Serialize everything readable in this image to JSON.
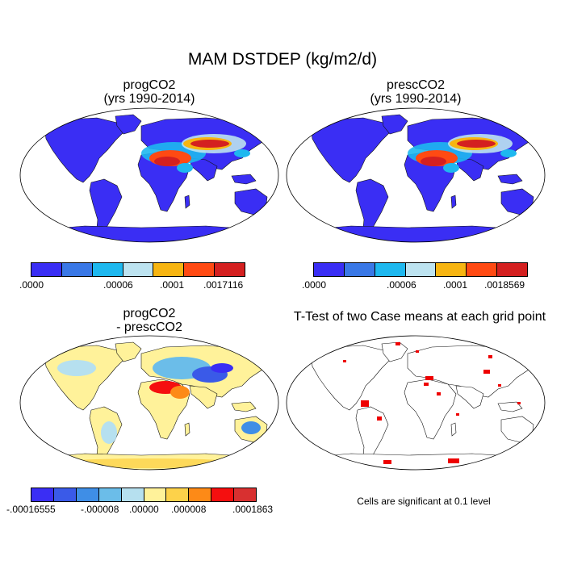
{
  "figure": {
    "title": "MAM DSTDEP (kg/m2/d)"
  },
  "panels": [
    {
      "id": "progCO2",
      "title_line1": "progCO2",
      "title_line2": "(yrs 1990-2014)",
      "colorbar": {
        "colors": [
          "#3a2ef4",
          "#3a78e6",
          "#1eb8ef",
          "#bde3f0",
          "#f7b512",
          "#ff4a13",
          "#d42020"
        ],
        "labels": [
          ".0000",
          ".00006",
          ".0001",
          ".0017116"
        ]
      }
    },
    {
      "id": "prescCO2",
      "title_line1": "prescCO2",
      "title_line2": "(yrs 1990-2014)",
      "colorbar": {
        "colors": [
          "#3a2ef4",
          "#3a78e6",
          "#1eb8ef",
          "#bde3f0",
          "#f7b512",
          "#ff4a13",
          "#d42020"
        ],
        "labels": [
          ".0000",
          ".00006",
          ".0001",
          ".0018569"
        ]
      }
    },
    {
      "id": "difference",
      "title_line1": "progCO2",
      "title_line2": "- prescCO2",
      "colorbar": {
        "colors": [
          "#3a2ef4",
          "#3a5ae8",
          "#3f8ee6",
          "#6bbde9",
          "#b6e0ef",
          "#fff29a",
          "#fdd24a",
          "#fd8a17",
          "#f50f0f",
          "#d83030"
        ],
        "labels": [
          "-.00016555",
          "-.000008",
          ".00000",
          ".000008",
          ".0001863"
        ]
      }
    },
    {
      "id": "ttest",
      "title_line1": "T-Test of two Case means at each grid point",
      "note": "Cells are significant at 0.1 level"
    }
  ]
}
